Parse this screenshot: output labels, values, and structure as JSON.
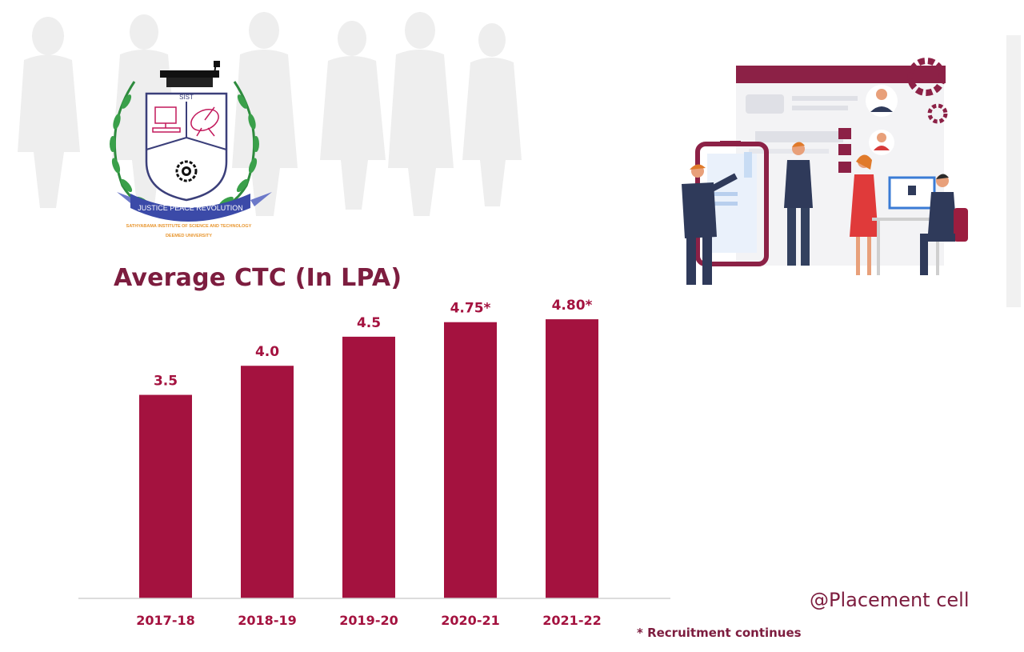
{
  "logo": {
    "abbr": "SIST",
    "motto": "JUSTICE PEACE REVOLUTION",
    "institute": "SATHYABAMA INSTITUTE OF SCIENCE AND TECHNOLOGY",
    "university": "DEEMED UNIVERSITY"
  },
  "credit": "@Placement cell",
  "footnote": "* Recruitment continues",
  "colors": {
    "bar": "#a4123f",
    "title": "#7d1d3f",
    "axis": "#d0d0d0"
  },
  "chart_data": {
    "type": "bar",
    "title": "Average CTC (In LPA)",
    "categories": [
      "2017-18",
      "2018-19",
      "2019-20",
      "2020-21",
      "2021-22"
    ],
    "values": [
      3.5,
      4.0,
      4.5,
      4.75,
      4.8
    ],
    "data_labels": [
      "3.5",
      "4.0",
      "4.5",
      "4.75*",
      "4.80*"
    ],
    "xlabel": "",
    "ylabel": "",
    "ylim": [
      0,
      5.2
    ],
    "grid": false,
    "legend": "none"
  }
}
